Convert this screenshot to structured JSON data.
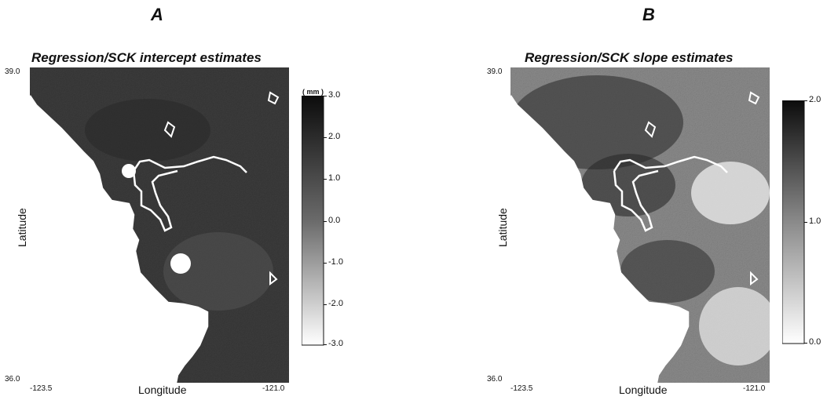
{
  "panels": {
    "a": {
      "letter": "A",
      "title": "Regression/SCK intercept estimates",
      "y_top": "39.0",
      "y_bottom": "36.0",
      "x_left": "-123.5",
      "x_right": "-121.0",
      "xlabel": "Longitude",
      "ylabel": "Latitude",
      "colorbar": {
        "units": "( mm )",
        "ticks": [
          "3.0",
          "2.0",
          "1.0",
          "0.0",
          "-1.0",
          "-2.0",
          "-3.0"
        ],
        "range": [
          -3.0,
          3.0
        ],
        "dark_color": "#0c0c0c",
        "light_color": "#ffffff"
      }
    },
    "b": {
      "letter": "B",
      "title": "Regression/SCK slope estimates",
      "y_top": "39.0",
      "y_bottom": "36.0",
      "x_left": "-123.5",
      "x_right": "-121.0",
      "xlabel": "Longitude",
      "ylabel": "Latitude",
      "colorbar": {
        "ticks": [
          "2.0",
          "1.0",
          "0.0"
        ],
        "range": [
          0.0,
          2.0
        ],
        "dark_color": "#0c0c0c",
        "light_color": "#ffffff"
      }
    }
  }
}
